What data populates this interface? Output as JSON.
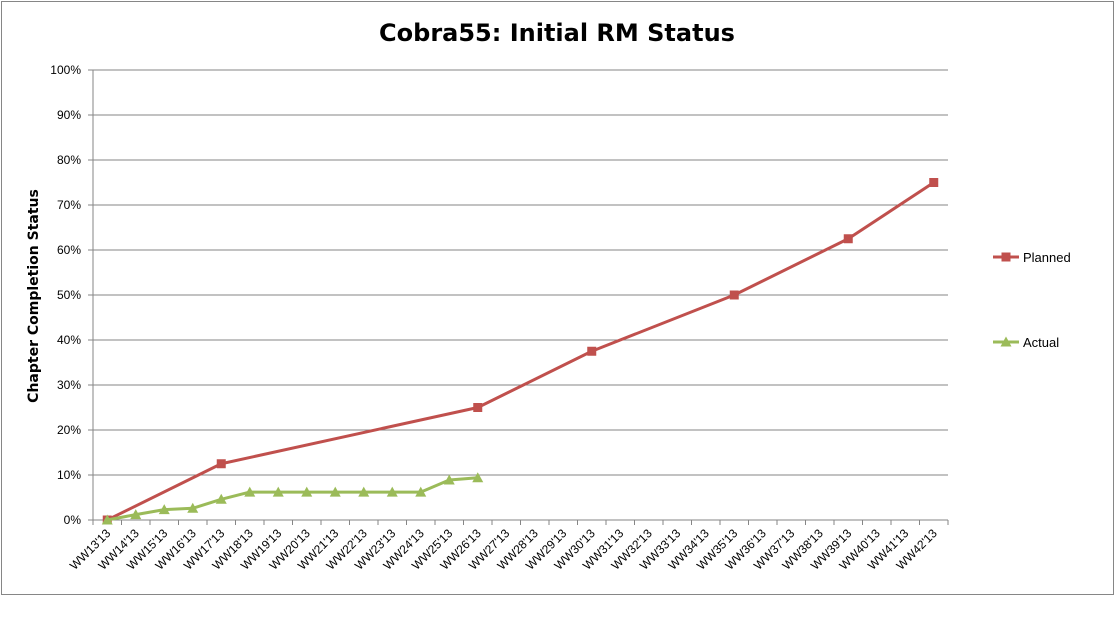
{
  "chart_data": {
    "type": "line",
    "title": "Cobra55: Initial RM Status",
    "xlabel": "",
    "ylabel": "Chapter Completion Status",
    "ylim": [
      0,
      100
    ],
    "yticks": [
      "0%",
      "10%",
      "20%",
      "30%",
      "40%",
      "50%",
      "60%",
      "70%",
      "80%",
      "90%",
      "100%"
    ],
    "grid": "horizontal",
    "legend_position": "right",
    "categories": [
      "WW13'13",
      "WW14'13",
      "WW15'13",
      "WW16'13",
      "WW17'13",
      "WW18'13",
      "WW19'13",
      "WW20'13",
      "WW21'13",
      "WW22'13",
      "WW23'13",
      "WW24'13",
      "WW25'13",
      "WW26'13",
      "WW27'13",
      "WW28'13",
      "WW29'13",
      "WW30'13",
      "WW31'13",
      "WW32'13",
      "WW33'13",
      "WW34'13",
      "WW35'13",
      "WW36'13",
      "WW37'13",
      "WW38'13",
      "WW39'13",
      "WW40'13",
      "WW41'13",
      "WW42'13"
    ],
    "series": [
      {
        "name": "Planned",
        "color": "#C0504D",
        "marker": "square",
        "points": [
          {
            "x": "WW13'13",
            "y": 0
          },
          {
            "x": "WW17'13",
            "y": 12.5
          },
          {
            "x": "WW26'13",
            "y": 25
          },
          {
            "x": "WW30'13",
            "y": 37.5
          },
          {
            "x": "WW35'13",
            "y": 50
          },
          {
            "x": "WW39'13",
            "y": 62.5
          },
          {
            "x": "WW42'13",
            "y": 75
          }
        ]
      },
      {
        "name": "Actual",
        "color": "#9BBB59",
        "marker": "triangle",
        "points": [
          {
            "x": "WW13'13",
            "y": 0
          },
          {
            "x": "WW14'13",
            "y": 1.2
          },
          {
            "x": "WW15'13",
            "y": 2.3
          },
          {
            "x": "WW16'13",
            "y": 2.6
          },
          {
            "x": "WW17'13",
            "y": 4.6
          },
          {
            "x": "WW18'13",
            "y": 6.2
          },
          {
            "x": "WW19'13",
            "y": 6.2
          },
          {
            "x": "WW20'13",
            "y": 6.2
          },
          {
            "x": "WW21'13",
            "y": 6.2
          },
          {
            "x": "WW22'13",
            "y": 6.2
          },
          {
            "x": "WW23'13",
            "y": 6.2
          },
          {
            "x": "WW24'13",
            "y": 6.2
          },
          {
            "x": "WW25'13",
            "y": 8.9
          },
          {
            "x": "WW26'13",
            "y": 9.4
          }
        ]
      }
    ]
  }
}
